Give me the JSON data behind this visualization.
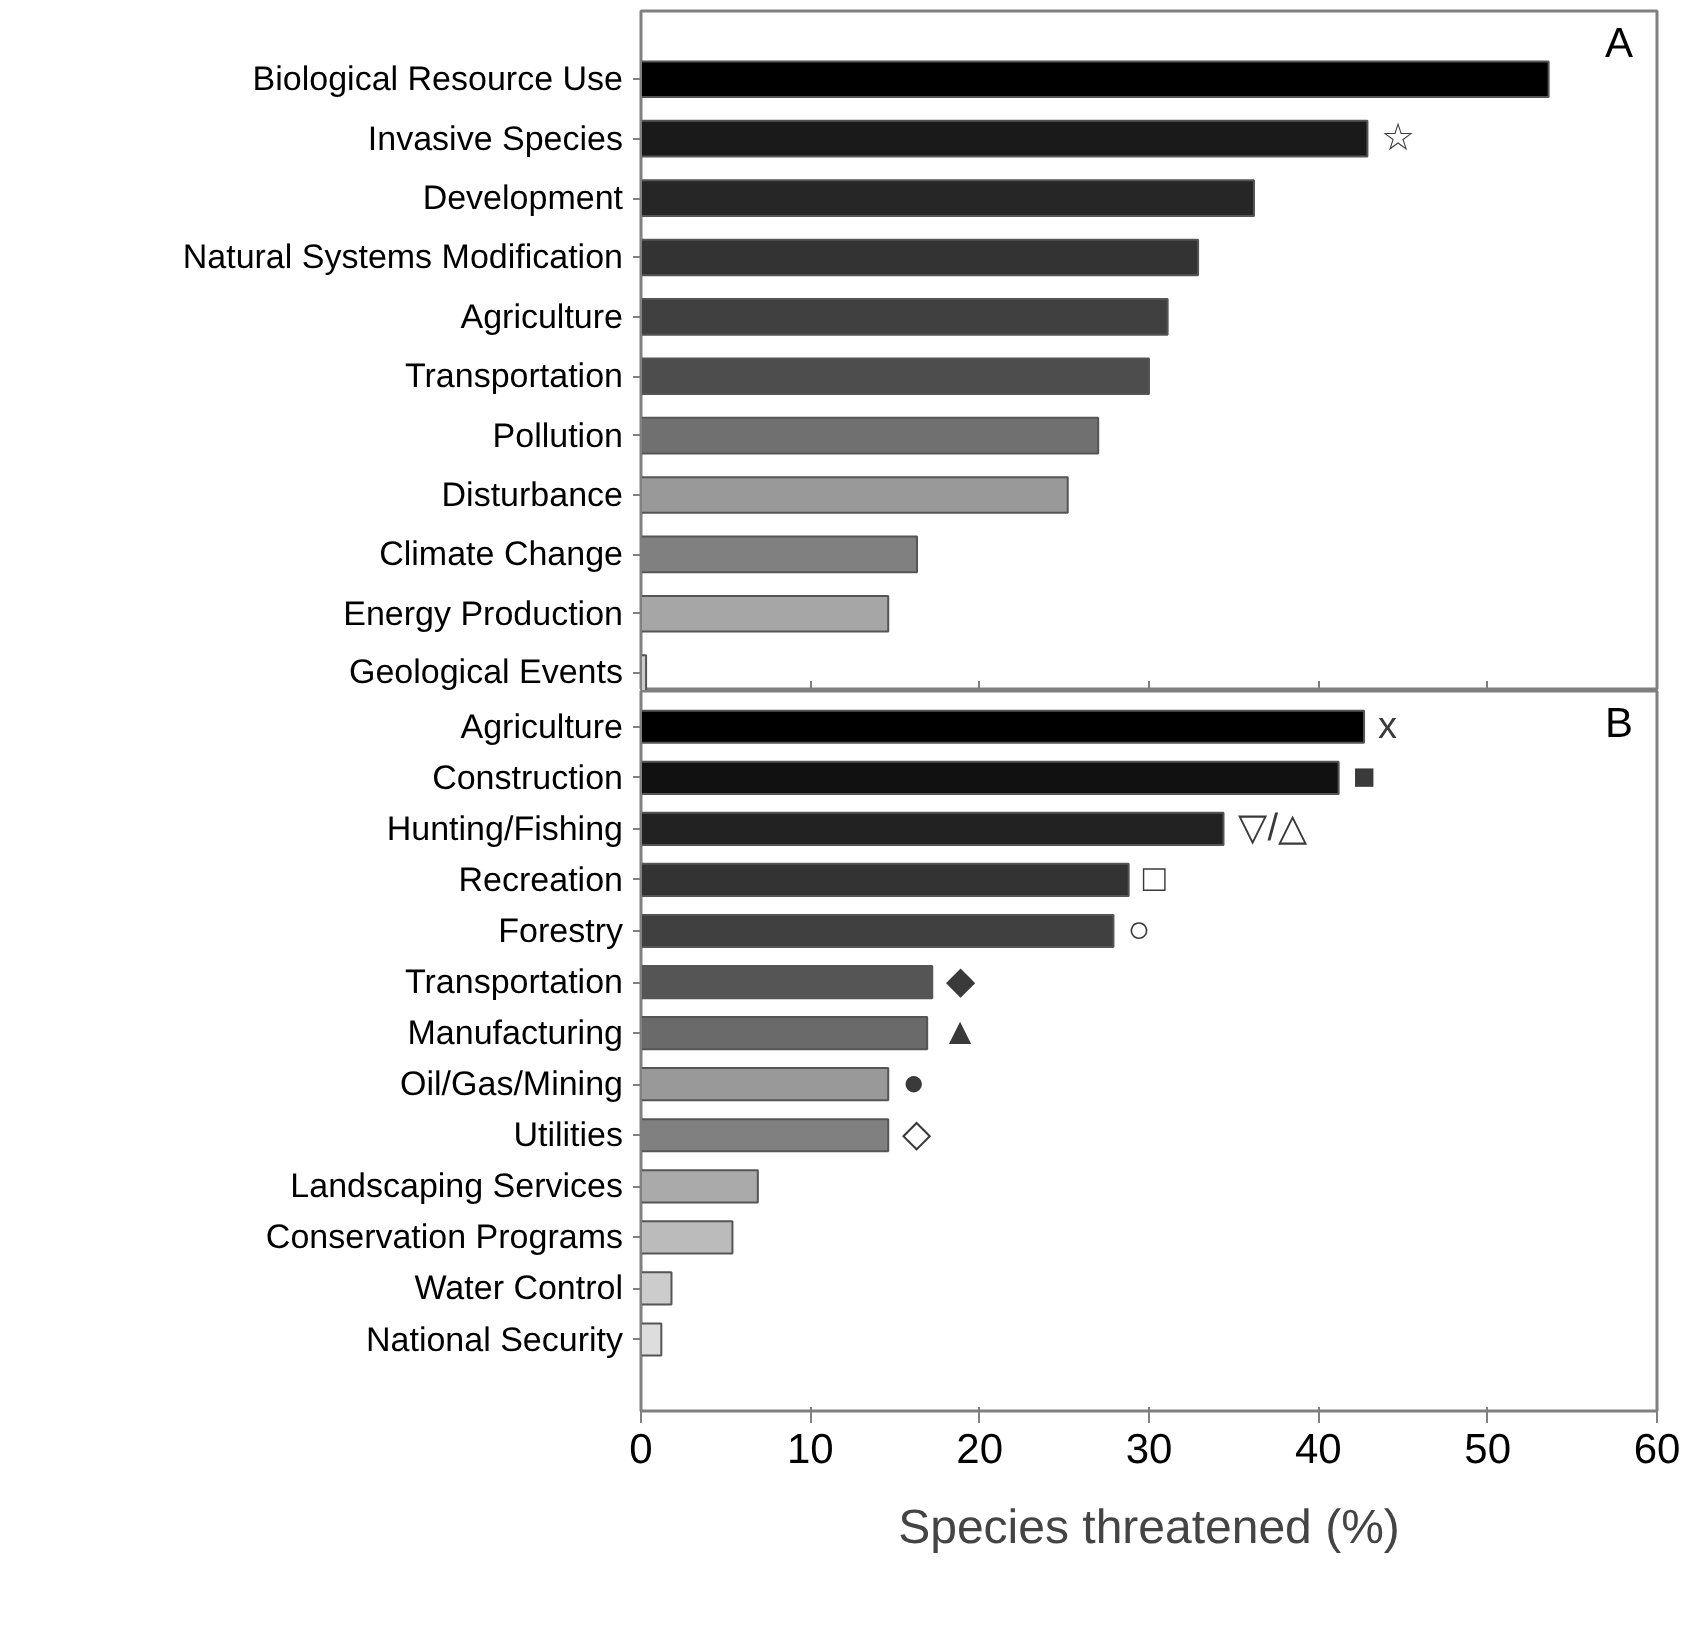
{
  "chart_data": [
    {
      "type": "bar",
      "orientation": "horizontal",
      "categories": [
        "Biological Resource Use",
        "Invasive Species",
        "Development",
        "Natural Systems Modification",
        "Agriculture",
        "Transportation",
        "Pollution",
        "Disturbance",
        "Climate Change",
        "Energy Production",
        "Geological Events"
      ],
      "values": [
        53.6,
        42.9,
        36.2,
        32.9,
        31.1,
        30.0,
        27.0,
        25.2,
        16.3,
        14.6,
        0.3
      ],
      "colors": [
        "#000000",
        "#1a1a1a",
        "#262626",
        "#333333",
        "#404040",
        "#4d4d4d",
        "#707070",
        "#999999",
        "#808080",
        "#a6a6a6",
        "#cccccc"
      ],
      "xlim": [
        0,
        60
      ],
      "xticks": [
        0,
        10,
        20,
        30,
        40,
        50,
        60
      ],
      "tick_labels": "y",
      "grid": false,
      "annotations": [
        "A",
        {
          "text": "☆",
          "x": 42.9,
          "y": "Invasive Species"
        }
      ]
    },
    {
      "type": "bar",
      "orientation": "horizontal",
      "categories": [
        "Agriculture",
        "Construction",
        "Hunting/Fishing",
        "Recreation",
        "Forestry",
        "Transportation",
        "Manufacturing",
        "Oil/Gas/Mining",
        "Utilities",
        "Landscaping Services",
        "Conservation Programs",
        "Water Control",
        "National Security"
      ],
      "values": [
        42.7,
        41.2,
        34.4,
        28.8,
        27.9,
        17.2,
        16.9,
        14.6,
        14.6,
        6.9,
        5.4,
        1.8,
        1.2
      ],
      "colors": [
        "#000000",
        "#111111",
        "#222222",
        "#333333",
        "#404040",
        "#555555",
        "#6a6a6a",
        "#999999",
        "#808080",
        "#aaaaaa",
        "#bbbbbb",
        "#cccccc",
        "#dddddd"
      ],
      "xlim": [
        0,
        60
      ],
      "xticks": [
        0,
        10,
        20,
        30,
        40,
        50,
        60
      ],
      "xlabel": "Species threatened (%)",
      "grid": false,
      "annotations": [
        "B",
        {
          "text": "x",
          "x": 42.7,
          "y": "Agriculture"
        },
        {
          "text": "■",
          "x": 41.2,
          "y": "Construction"
        },
        {
          "text": "▽/△",
          "x": 34.4,
          "y": "Hunting/Fishing"
        },
        {
          "text": "□",
          "x": 28.8,
          "y": "Recreation"
        },
        {
          "text": "○",
          "x": 27.9,
          "y": "Forestry"
        },
        {
          "text": "◆",
          "x": 17.2,
          "y": "Transportation"
        },
        {
          "text": "▲",
          "x": 16.9,
          "y": "Manufacturing"
        },
        {
          "text": "●",
          "x": 14.6,
          "y": "Oil/Gas/Mining"
        },
        {
          "text": "◇",
          "x": 14.6,
          "y": "Utilities"
        }
      ]
    }
  ]
}
